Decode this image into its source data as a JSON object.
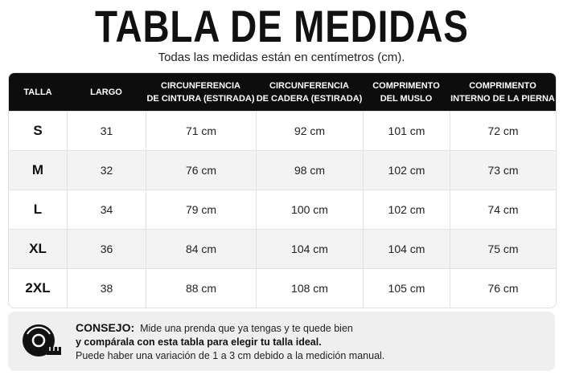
{
  "header": {
    "title": "TABLA DE MEDIDAS",
    "subtitle": "Todas las medidas están en centímetros (cm)."
  },
  "table": {
    "columns": [
      [
        "TALLA"
      ],
      [
        "LARGO"
      ],
      [
        "CIRCUNFERENCIA",
        "DE CINTURA (ESTIRADA)"
      ],
      [
        "CIRCUNFERENCIA",
        "DE CADERA (ESTIRADA)"
      ],
      [
        "COMPRIMENTO",
        "DEL MUSLO"
      ],
      [
        "COMPRIMENTO",
        "INTERNO DE LA PIERNA"
      ]
    ],
    "rows": [
      [
        "S",
        "31",
        "71 cm",
        "92 cm",
        "101 cm",
        "72 cm"
      ],
      [
        "M",
        "32",
        "76 cm",
        "98 cm",
        "102 cm",
        "73 cm"
      ],
      [
        "L",
        "34",
        "79 cm",
        "100 cm",
        "102 cm",
        "74 cm"
      ],
      [
        "XL",
        "36",
        "84 cm",
        "104 cm",
        "104 cm",
        "75 cm"
      ],
      [
        "2XL",
        "38",
        "88 cm",
        "108 cm",
        "105 cm",
        "76 cm"
      ]
    ]
  },
  "tip": {
    "label": "CONSEJO:",
    "line1": "Mide una prenda que ya tengas y te quede bien",
    "line2": "y compárala con esta tabla para elegir tu talla ideal.",
    "line3": "Puede haber una variación de 1 a 3 cm debido a la medición manual."
  }
}
